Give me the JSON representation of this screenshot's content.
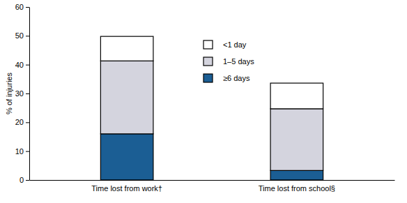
{
  "chart_data": {
    "type": "bar",
    "stacked": true,
    "y_label": "% of injuries",
    "categories": [
      "Time lost from work†",
      "Time lost from school§"
    ],
    "series": [
      {
        "name": "≥6 days",
        "color": "#1b5e94",
        "values": [
          16,
          3.3
        ]
      },
      {
        "name": "1–5 days",
        "color": "#d4d4de",
        "values": [
          25.3,
          21.4
        ]
      },
      {
        "name": "<1 day",
        "color": "#ffffff",
        "values": [
          8.5,
          8.9
        ]
      }
    ],
    "ylim": [
      0,
      60
    ],
    "yticks": [
      0,
      10,
      20,
      30,
      40,
      50,
      60
    ],
    "grid": false,
    "legend": "top"
  }
}
